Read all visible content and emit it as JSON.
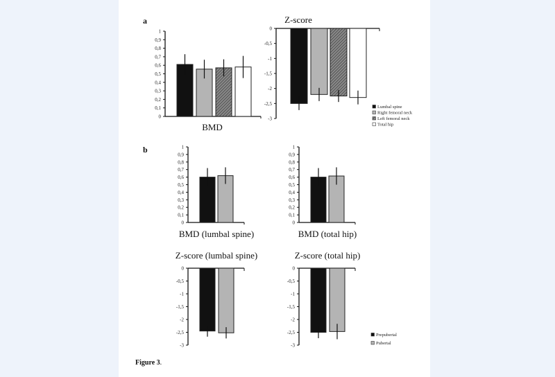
{
  "figure": {
    "panel_a": "a",
    "panel_b": "b",
    "caption_bold": "Figure 3",
    "caption_rest": "."
  },
  "colors": {
    "black": "#111111",
    "grey": "#b4b4b4",
    "hatched": "#6a6a6a",
    "white": "#ffffff",
    "background": "#eef3fb"
  },
  "chart_data": [
    {
      "type": "bar",
      "id": "a-bmd",
      "title": "",
      "xlabel": "BMD",
      "ylim": [
        0,
        1
      ],
      "yticks": [
        "0",
        "0,1",
        "0,2",
        "0,3",
        "0,4",
        "0,5",
        "0,6",
        "0,7",
        "0,8",
        "0,9",
        "1"
      ],
      "series": [
        {
          "name": "Lumbal spine",
          "values": [
            0.61
          ],
          "error": [
            0.12
          ]
        },
        {
          "name": "Right femoral neck",
          "values": [
            0.555
          ],
          "error": [
            0.11
          ]
        },
        {
          "name": "Left femoral neck",
          "values": [
            0.57
          ],
          "error": [
            0.1
          ]
        },
        {
          "name": "Total hip",
          "values": [
            0.58
          ],
          "error": [
            0.13
          ]
        }
      ]
    },
    {
      "type": "bar",
      "id": "a-z",
      "title": "Z-score",
      "xlabel": "",
      "ylim": [
        -3,
        0
      ],
      "yticks": [
        "-3",
        "-2,5",
        "-2",
        "-1,5",
        "-1",
        "-0,5",
        "0"
      ],
      "series": [
        {
          "name": "Lumbal spine",
          "values": [
            -2.5
          ],
          "error": [
            0.22
          ]
        },
        {
          "name": "Right femoral neck",
          "values": [
            -2.2
          ],
          "error": [
            0.22
          ]
        },
        {
          "name": "Left femoral neck",
          "values": [
            -2.25
          ],
          "error": [
            0.2
          ]
        },
        {
          "name": "Total hip",
          "values": [
            -2.3
          ],
          "error": [
            0.23
          ]
        }
      ],
      "legend": [
        "Lumbal spine",
        "Right femoral neck",
        "Left femoral neck",
        "Total hip"
      ],
      "legend_position": "bottom-right"
    },
    {
      "type": "bar",
      "id": "b-bmd-ls",
      "title": "",
      "xlabel": "BMD (lumbal spine)",
      "ylim": [
        0,
        1
      ],
      "yticks": [
        "0",
        "0,1",
        "0,2",
        "0,3",
        "0,4",
        "0,5",
        "0,6",
        "0,7",
        "0,8",
        "0,9",
        "1"
      ],
      "series": [
        {
          "name": "Prepubertal",
          "values": [
            0.6
          ],
          "error": [
            0.12
          ]
        },
        {
          "name": "Pubertal",
          "values": [
            0.62
          ],
          "error": [
            0.11
          ]
        }
      ]
    },
    {
      "type": "bar",
      "id": "b-bmd-th",
      "title": "",
      "xlabel": "BMD (total hip)",
      "ylim": [
        0,
        1
      ],
      "yticks": [
        "0",
        "0,1",
        "0,2",
        "0,3",
        "0,4",
        "0,5",
        "0,6",
        "0,7",
        "0,8",
        "0,9",
        "1"
      ],
      "series": [
        {
          "name": "Prepubertal",
          "values": [
            0.6
          ],
          "error": [
            0.12
          ]
        },
        {
          "name": "Pubertal",
          "values": [
            0.615
          ],
          "error": [
            0.115
          ]
        }
      ]
    },
    {
      "type": "bar",
      "id": "b-z-ls",
      "title": "Z-score  (lumbal spine)",
      "xlabel": "",
      "ylim": [
        -3,
        0
      ],
      "yticks": [
        "-3",
        "-2,5",
        "-2",
        "-1,5",
        "-1",
        "-0,5",
        "0"
      ],
      "series": [
        {
          "name": "Prepubertal",
          "values": [
            -2.45
          ],
          "error": [
            0.22
          ]
        },
        {
          "name": "Pubertal",
          "values": [
            -2.52
          ],
          "error": [
            0.22
          ]
        }
      ]
    },
    {
      "type": "bar",
      "id": "b-z-th",
      "title": "Z-score  (total hip)",
      "xlabel": "",
      "ylim": [
        -3,
        0
      ],
      "yticks": [
        "-3",
        "-2,5",
        "-2",
        "-1,5",
        "-1",
        "-0,5",
        "0"
      ],
      "series": [
        {
          "name": "Prepubertal",
          "values": [
            -2.5
          ],
          "error": [
            0.23
          ]
        },
        {
          "name": "Pubertal",
          "values": [
            -2.47
          ],
          "error": [
            0.3
          ]
        }
      ],
      "legend": [
        "Prepubertal",
        "Pubertal"
      ],
      "legend_position": "bottom-right"
    }
  ]
}
